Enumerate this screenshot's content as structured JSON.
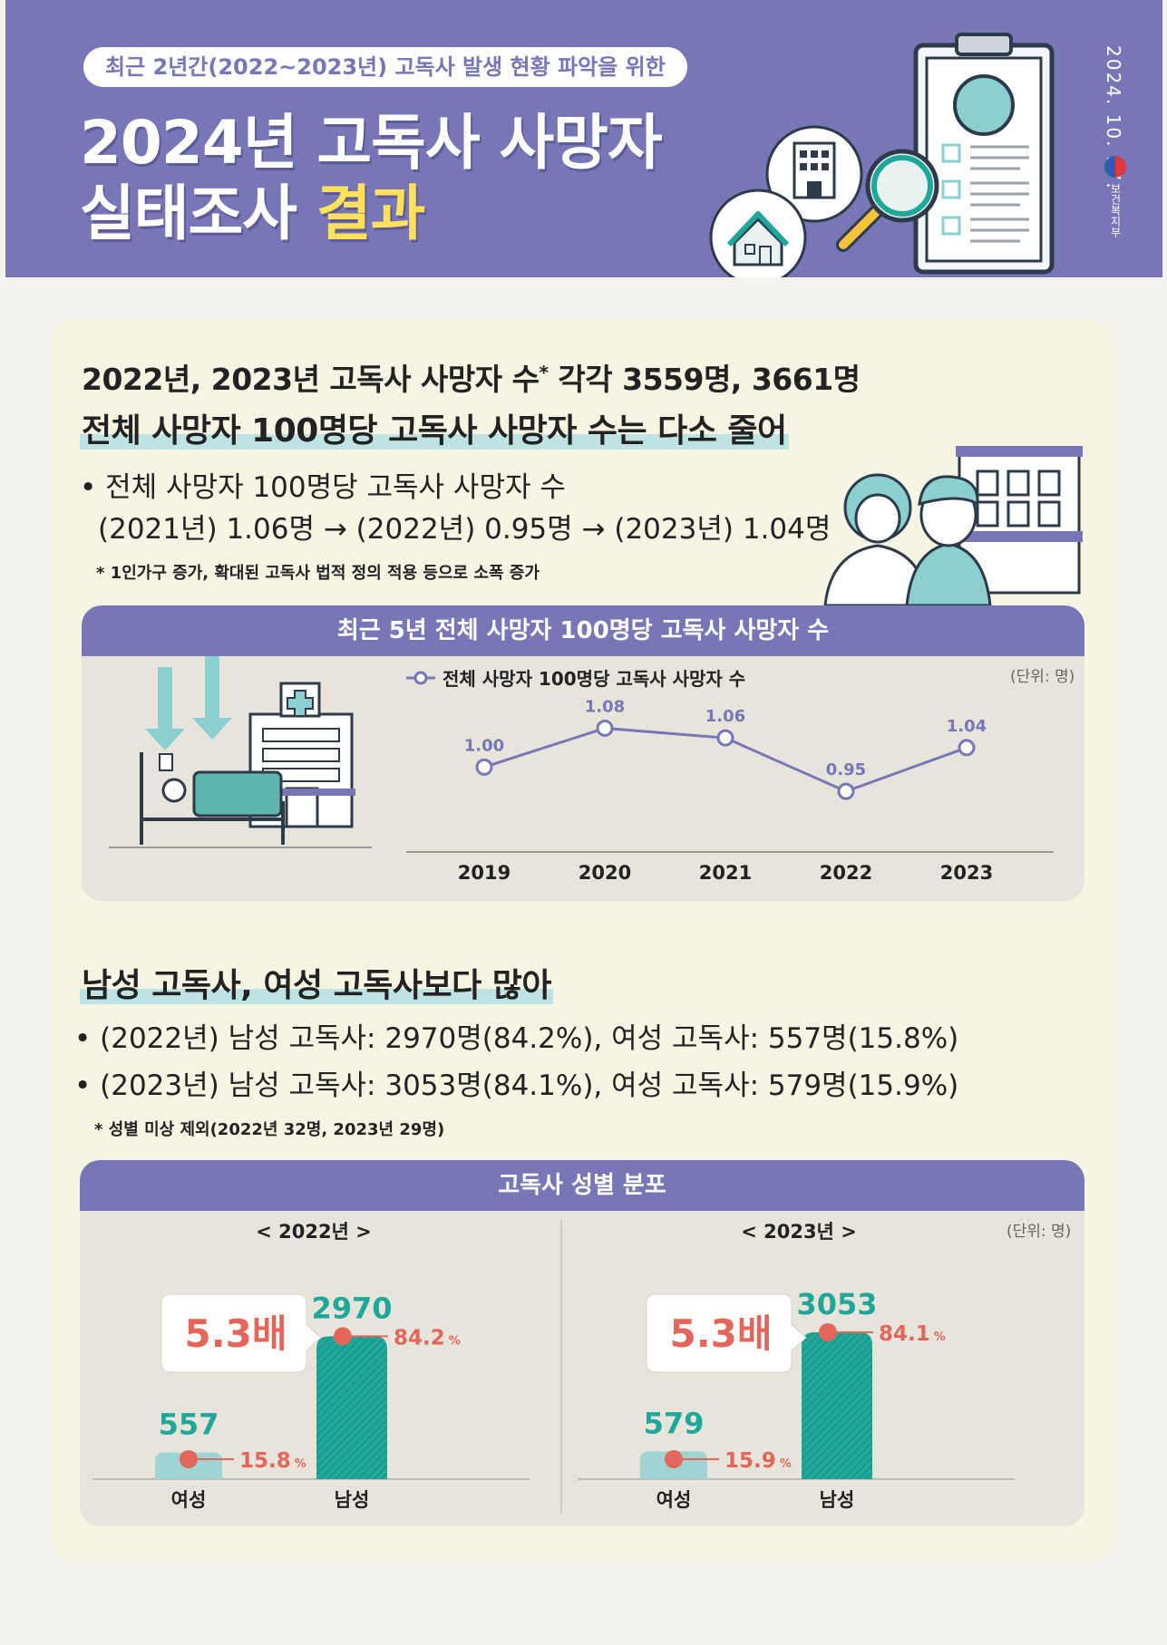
{
  "header": {
    "subtitle": "최근 2년간(2022~2023년) 고독사 발생 현황 파악을 위한",
    "title_line1": "2024년 고독사 사망자",
    "title_line2_a": "실태조사 ",
    "title_line2_b": "결과",
    "date": "2024. 10. 17.",
    "ministry": "보건복지부"
  },
  "section1": {
    "headline_a": "2022년, 2023년 고독사 사망자 수",
    "headline_star": "*",
    "headline_b": " 각각 3559명, 3661명",
    "headline2": "전체 사망자 100명당 고독사 사망자 수는 다소 줄어",
    "bullet_line1": "• 전체 사망자 100명당 고독사 사망자 수",
    "bullet_line2": "(2021년) 1.06명 → (2022년) 0.95명 → (2023년) 1.04명",
    "note": "* 1인가구 증가, 확대된 고독사 법적 정의 적용 등으로 소폭 증가",
    "box_title": "최근 5년 전체 사망자 100명당 고독사 사망자 수",
    "unit": "(단위: 명)"
  },
  "section2": {
    "headline": "남성 고독사, 여성 고독사보다 많아",
    "bullet1": "• (2022년) 남성 고독사: 2970명(84.2%), 여성 고독사: 557명(15.8%)",
    "bullet2": "• (2023년) 남성 고독사: 3053명(84.1%), 여성 고독사: 579명(15.9%)",
    "note": "* 성별 미상 제외(2022년 32명, 2023년 29명)",
    "box_title": "고독사 성별 분포",
    "unit": "(단위: 명)"
  },
  "colors": {
    "header_purple": "#7776b7",
    "teal": "#1fa89a",
    "coral": "#e4665a",
    "highlight_yellow": "#ffe15a"
  },
  "chart_data": [
    {
      "type": "line",
      "title": "최근 5년 전체 사망자 100명당 고독사 사망자 수",
      "series": [
        {
          "name": "전체 사망자 100명당 고독사 사망자 수",
          "x": [
            "2019",
            "2020",
            "2021",
            "2022",
            "2023"
          ],
          "values": [
            1.0,
            1.08,
            1.06,
            0.95,
            1.04
          ],
          "value_labels": [
            "1.00",
            "1.08",
            "1.06",
            "0.95",
            "1.04"
          ]
        }
      ],
      "unit": "(단위: 명)",
      "legend_position": "top",
      "ylim": [
        0.9,
        1.12
      ]
    },
    {
      "type": "bar",
      "title": "고독사 성별 분포",
      "unit": "(단위: 명)",
      "panels": [
        {
          "year_label": "< 2022년 >",
          "categories": [
            "여성",
            "남성"
          ],
          "values": [
            557,
            2970
          ],
          "percent_labels": [
            "15.8",
            "84.2"
          ],
          "percent_sign": "%",
          "ratio_label": "5.3배"
        },
        {
          "year_label": "< 2023년 >",
          "categories": [
            "여성",
            "남성"
          ],
          "values": [
            579,
            3053
          ],
          "percent_labels": [
            "15.9",
            "84.1"
          ],
          "percent_sign": "%",
          "ratio_label": "5.3배"
        }
      ]
    }
  ]
}
